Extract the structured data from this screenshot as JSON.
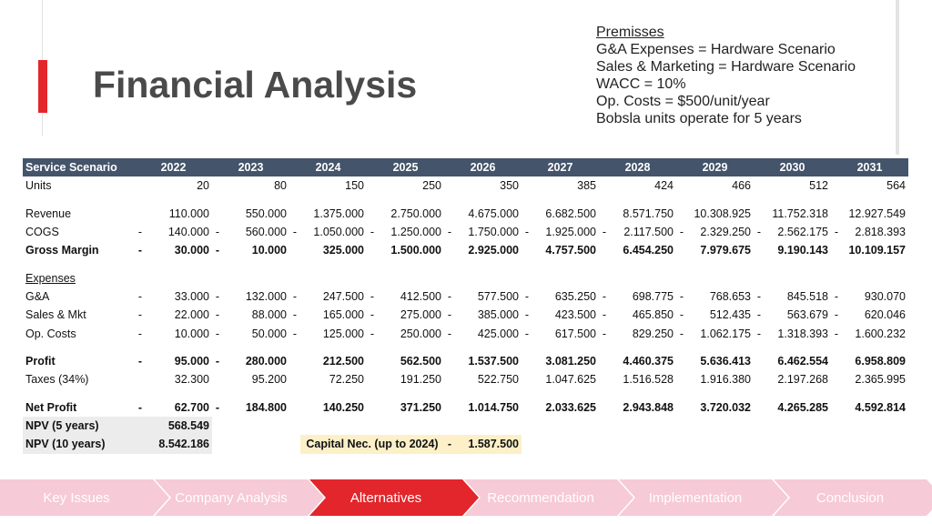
{
  "title": "Financial Analysis",
  "premises": {
    "heading": "Premisses",
    "lines": [
      "G&A Expenses = Hardware Scenario",
      "Sales & Marketing = Hardware Scenario",
      "WACC = 10%",
      "Op. Costs = $500/unit/year",
      "Bobsla units operate for 5 years"
    ]
  },
  "table": {
    "header": [
      "Service Scenario",
      "2022",
      "2023",
      "2024",
      "2025",
      "2026",
      "2027",
      "2028",
      "2029",
      "2030",
      "2031"
    ],
    "units": {
      "label": "Units",
      "values": [
        "20",
        "80",
        "150",
        "250",
        "350",
        "385",
        "424",
        "466",
        "512",
        "564"
      ]
    },
    "revenue": {
      "label": "Revenue",
      "values": [
        "110.000",
        "550.000",
        "1.375.000",
        "2.750.000",
        "4.675.000",
        "6.682.500",
        "8.571.750",
        "10.308.925",
        "11.752.318",
        "12.927.549"
      ]
    },
    "cogs": {
      "label": "COGS",
      "values": [
        "140.000",
        "560.000",
        "1.050.000",
        "1.250.000",
        "1.750.000",
        "1.925.000",
        "2.117.500",
        "2.329.250",
        "2.562.175",
        "2.818.393"
      ]
    },
    "gross_margin": {
      "label": "Gross Margin",
      "values": [
        "30.000",
        "10.000",
        "325.000",
        "1.500.000",
        "2.925.000",
        "4.757.500",
        "6.454.250",
        "7.979.675",
        "9.190.143",
        "10.109.157"
      ]
    },
    "expenses_label": "Expenses",
    "ga": {
      "label": "G&A",
      "values": [
        "33.000",
        "132.000",
        "247.500",
        "412.500",
        "577.500",
        "635.250",
        "698.775",
        "768.653",
        "845.518",
        "930.070"
      ]
    },
    "sales_mkt": {
      "label": "Sales & Mkt",
      "values": [
        "22.000",
        "88.000",
        "165.000",
        "275.000",
        "385.000",
        "423.500",
        "465.850",
        "512.435",
        "563.679",
        "620.046"
      ]
    },
    "op_costs": {
      "label": "Op. Costs",
      "values": [
        "10.000",
        "50.000",
        "125.000",
        "250.000",
        "425.000",
        "617.500",
        "829.250",
        "1.062.175",
        "1.318.393",
        "1.600.232"
      ]
    },
    "profit": {
      "label": "Profit",
      "values": [
        "95.000",
        "280.000",
        "212.500",
        "562.500",
        "1.537.500",
        "3.081.250",
        "4.460.375",
        "5.636.413",
        "6.462.554",
        "6.958.809"
      ]
    },
    "taxes": {
      "label": "Taxes (34%)",
      "values": [
        "32.300",
        "95.200",
        "72.250",
        "191.250",
        "522.750",
        "1.047.625",
        "1.516.528",
        "1.916.380",
        "2.197.268",
        "2.365.995"
      ]
    },
    "net_profit": {
      "label": "Net Profit",
      "values": [
        "62.700",
        "184.800",
        "140.250",
        "371.250",
        "1.014.750",
        "2.033.625",
        "2.943.848",
        "3.720.032",
        "4.265.285",
        "4.592.814"
      ]
    },
    "npv5": {
      "label": "NPV (5 years)",
      "value": "568.549"
    },
    "npv10": {
      "label": "NPV (10 years)",
      "value": "8.542.186"
    },
    "capital": {
      "label": "Capital Nec. (up to 2024)",
      "value": "1.587.500"
    },
    "neg_sign": "-"
  },
  "nav": {
    "steps": [
      "Key Issues",
      "Company Analysis",
      "Alternatives",
      "Recommendation",
      "Implementation",
      "Conclusion"
    ],
    "active_color": "#e3262c",
    "inactive_color": "#f6cad7"
  }
}
